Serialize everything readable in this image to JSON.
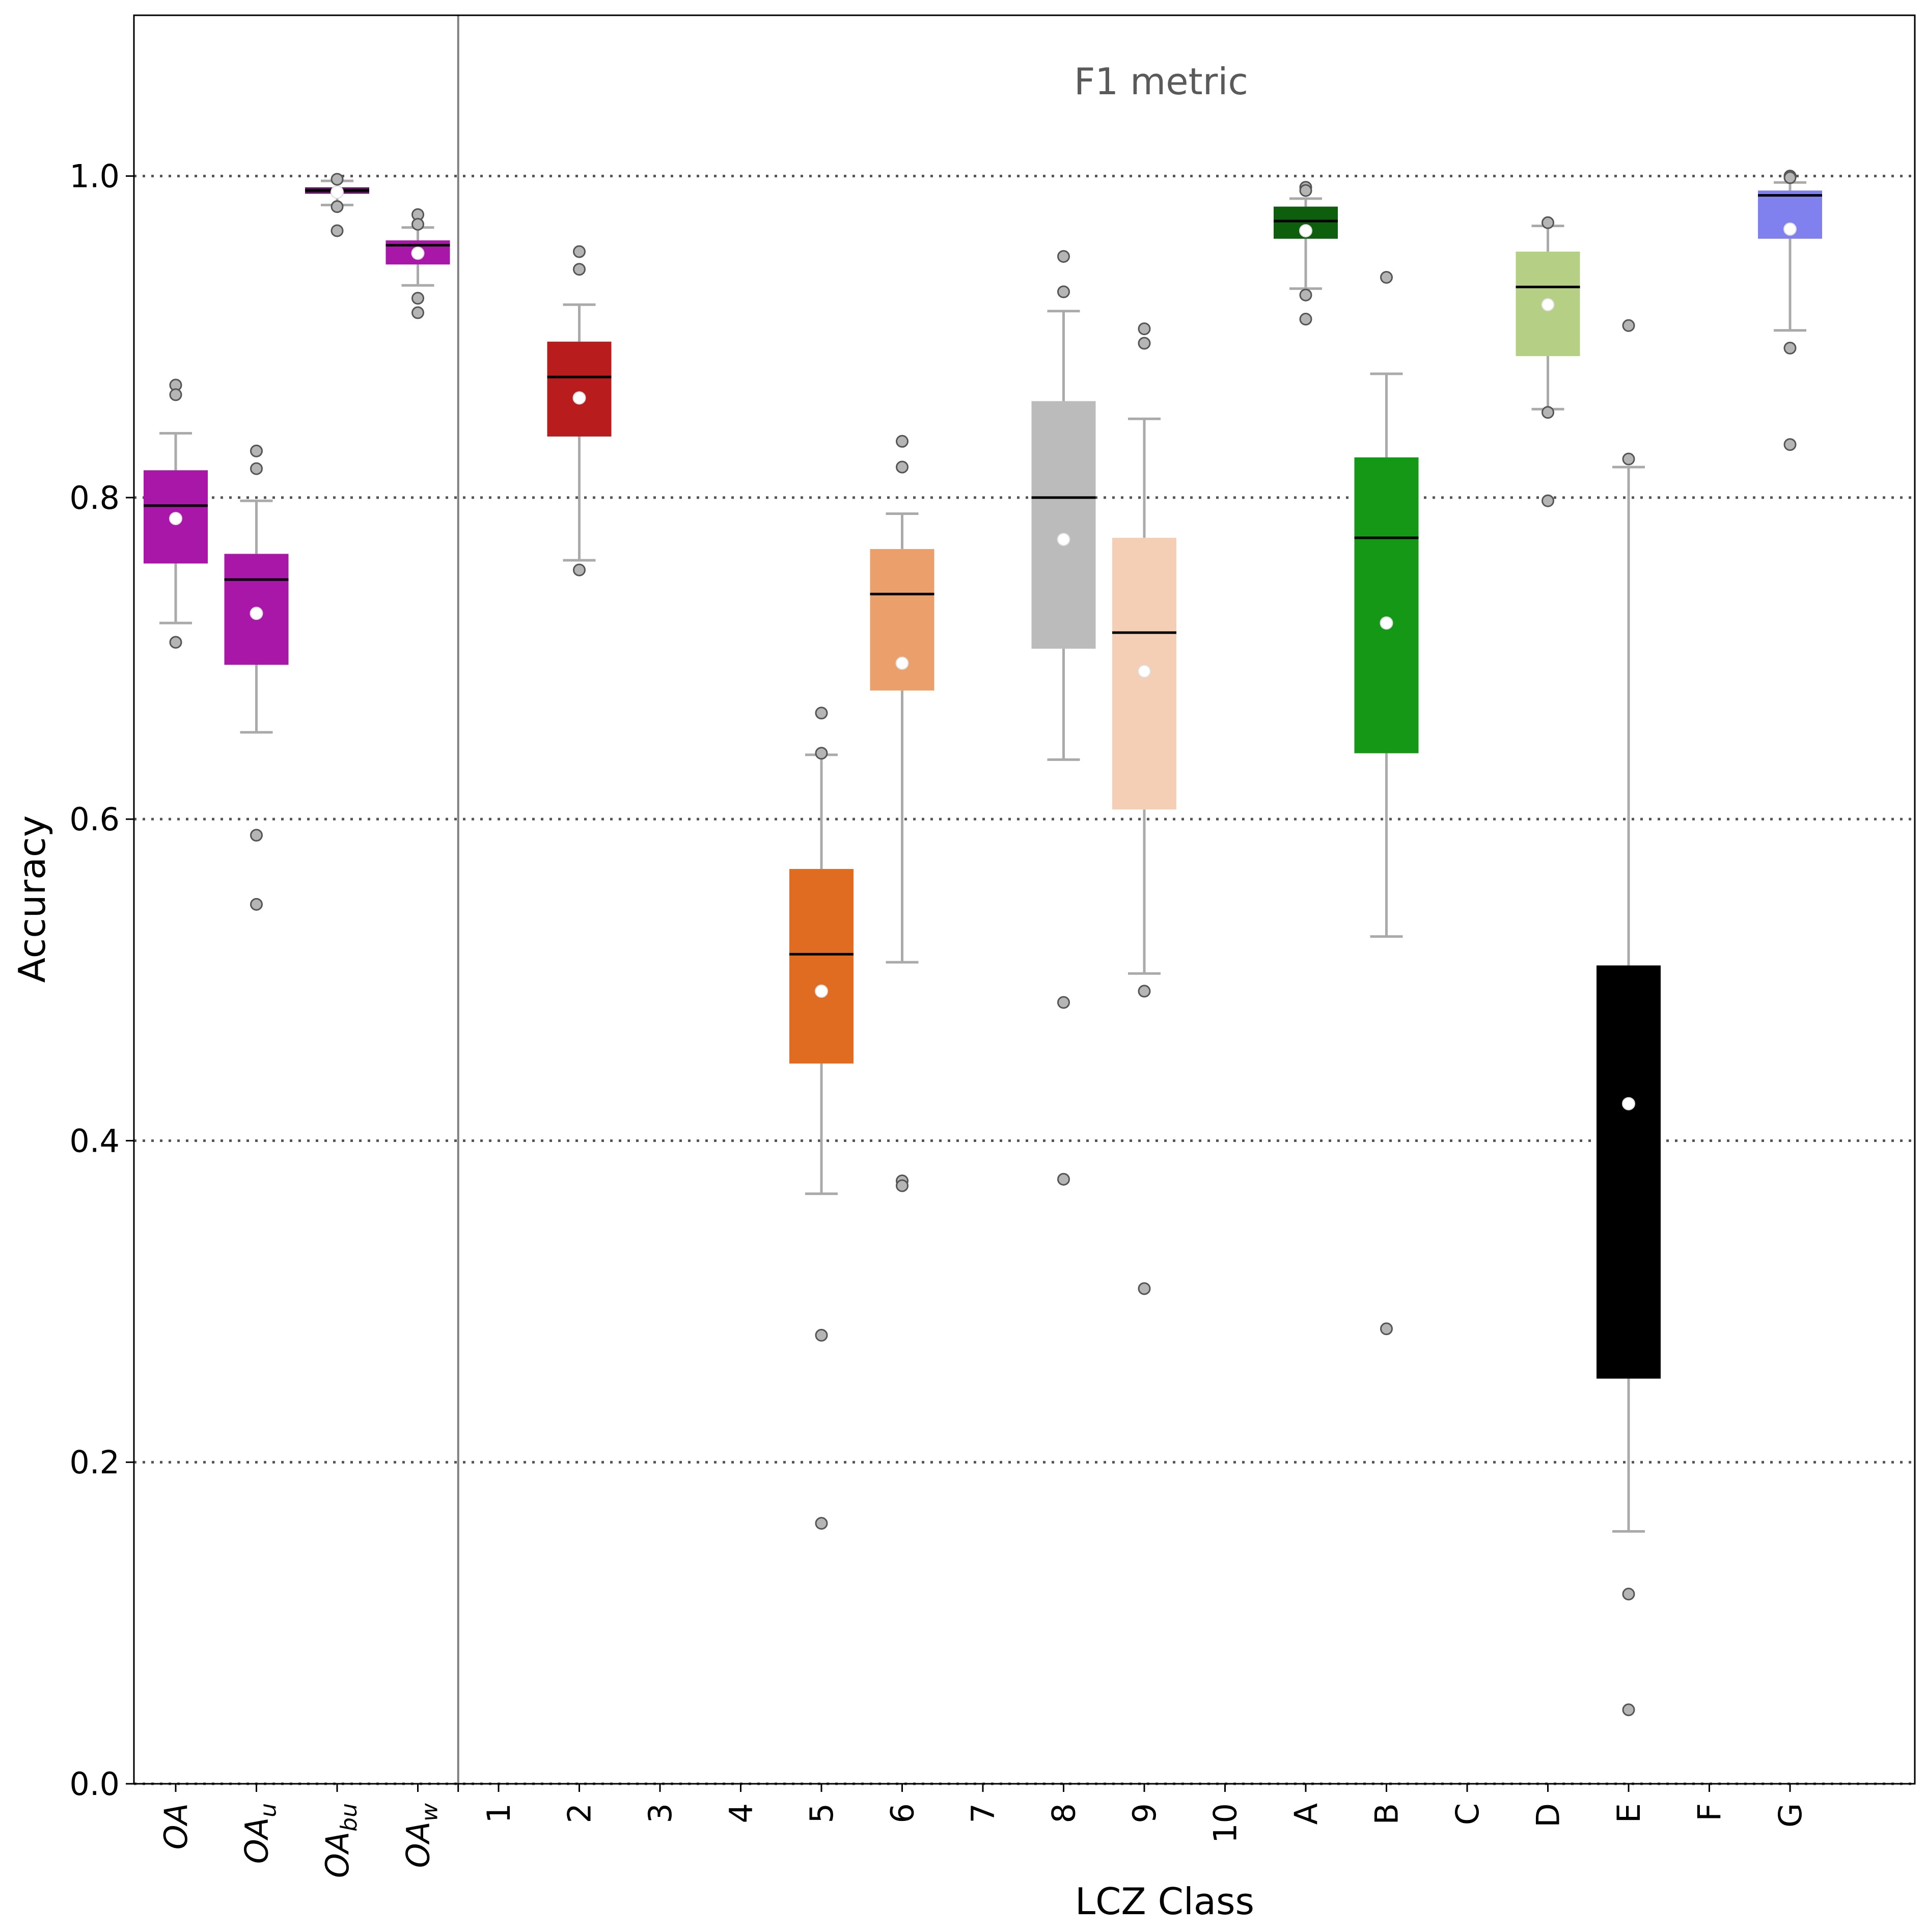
{
  "chart_data": {
    "type": "box",
    "title": "F1 metric",
    "xlabel": "LCZ Class",
    "ylabel": "Accuracy",
    "ylim": [
      0.0,
      1.1
    ],
    "yticks": [
      "0.0",
      "0.2",
      "0.4",
      "0.6",
      "0.8",
      "1.0"
    ],
    "grid": "horizontal dotted at y ticks",
    "categories": [
      {
        "main": "OA",
        "sub": ""
      },
      {
        "main": "OA",
        "sub": "u"
      },
      {
        "main": "OA",
        "sub": "bu"
      },
      {
        "main": "OA",
        "sub": "w"
      },
      {
        "main": "1"
      },
      {
        "main": "2"
      },
      {
        "main": "3"
      },
      {
        "main": "4"
      },
      {
        "main": "5"
      },
      {
        "main": "6"
      },
      {
        "main": "7"
      },
      {
        "main": "8"
      },
      {
        "main": "9"
      },
      {
        "main": "10"
      },
      {
        "main": "A"
      },
      {
        "main": "B"
      },
      {
        "main": "C"
      },
      {
        "main": "D"
      },
      {
        "main": "E"
      },
      {
        "main": "F"
      },
      {
        "main": "G"
      }
    ],
    "boxes": [
      {
        "category": "OA",
        "color": "#a817a8",
        "q1": 0.759,
        "median": 0.795,
        "q3": 0.817,
        "mean": 0.787,
        "whisker_low": 0.722,
        "whisker_high": 0.84,
        "outliers": [
          0.87,
          0.864,
          0.71
        ]
      },
      {
        "category": "OA_u",
        "color": "#a817a8",
        "q1": 0.696,
        "median": 0.749,
        "q3": 0.765,
        "mean": 0.728,
        "whisker_low": 0.654,
        "whisker_high": 0.798,
        "outliers": [
          0.829,
          0.818,
          0.59,
          0.547
        ]
      },
      {
        "category": "OA_bu",
        "color": "#5c1a5c",
        "q1": 0.989,
        "median": 0.991,
        "q3": 0.993,
        "mean": 0.99,
        "whisker_low": 0.982,
        "whisker_high": 0.997,
        "outliers": [
          0.998,
          0.981,
          0.966
        ]
      },
      {
        "category": "OA_w",
        "color": "#a817a8",
        "q1": 0.945,
        "median": 0.957,
        "q3": 0.96,
        "mean": 0.952,
        "whisker_low": 0.932,
        "whisker_high": 0.968,
        "outliers": [
          0.976,
          0.97,
          0.924,
          0.915
        ]
      },
      {
        "category": "2",
        "color": "#b81c1c",
        "q1": 0.838,
        "median": 0.875,
        "q3": 0.897,
        "mean": 0.862,
        "whisker_low": 0.761,
        "whisker_high": 0.92,
        "outliers": [
          0.953,
          0.942,
          0.755
        ]
      },
      {
        "category": "5",
        "color": "#e06c22",
        "q1": 0.448,
        "median": 0.516,
        "q3": 0.569,
        "mean": 0.493,
        "whisker_low": 0.367,
        "whisker_high": 0.64,
        "outliers": [
          0.666,
          0.641,
          0.279,
          0.162
        ]
      },
      {
        "category": "6",
        "color": "#eb9f6a",
        "q1": 0.68,
        "median": 0.74,
        "q3": 0.768,
        "mean": 0.697,
        "whisker_low": 0.511,
        "whisker_high": 0.79,
        "outliers": [
          0.835,
          0.819,
          0.375,
          0.372
        ]
      },
      {
        "category": "8",
        "color": "#bbbbbb",
        "q1": 0.706,
        "median": 0.8,
        "q3": 0.86,
        "mean": 0.774,
        "whisker_low": 0.637,
        "whisker_high": 0.916,
        "outliers": [
          0.95,
          0.928,
          0.486,
          0.376
        ]
      },
      {
        "category": "9",
        "color": "#f5cfb5",
        "q1": 0.606,
        "median": 0.716,
        "q3": 0.775,
        "mean": 0.692,
        "whisker_low": 0.504,
        "whisker_high": 0.849,
        "outliers": [
          0.905,
          0.896,
          0.493,
          0.308
        ]
      },
      {
        "category": "A",
        "color": "#0d5e0d",
        "q1": 0.961,
        "median": 0.972,
        "q3": 0.981,
        "mean": 0.966,
        "whisker_low": 0.93,
        "whisker_high": 0.986,
        "outliers": [
          0.993,
          0.991,
          0.926,
          0.911
        ]
      },
      {
        "category": "B",
        "color": "#159815",
        "q1": 0.641,
        "median": 0.775,
        "q3": 0.825,
        "mean": 0.722,
        "whisker_low": 0.527,
        "whisker_high": 0.877,
        "outliers": [
          0.937,
          0.283
        ]
      },
      {
        "category": "D",
        "color": "#b5d085",
        "q1": 0.888,
        "median": 0.931,
        "q3": 0.953,
        "mean": 0.92,
        "whisker_low": 0.855,
        "whisker_high": 0.969,
        "outliers": [
          0.971,
          0.853,
          0.798
        ]
      },
      {
        "category": "E",
        "color": "#000000",
        "q1": 0.252,
        "median": 0.393,
        "q3": 0.509,
        "mean": 0.423,
        "whisker_low": 0.157,
        "whisker_high": 0.819,
        "outliers": [
          0.907,
          0.824,
          0.118,
          0.046
        ]
      },
      {
        "category": "G",
        "color": "#8080ee",
        "q1": 0.961,
        "median": 0.988,
        "q3": 0.991,
        "mean": 0.967,
        "whisker_low": 0.904,
        "whisker_high": 0.996,
        "outliers": [
          1.0,
          0.999,
          0.893,
          0.833
        ]
      }
    ],
    "colors": {
      "whisker": "#aaaaaa",
      "median": "#000000",
      "mean_marker": "#ffffff",
      "outlier_fill": "#b5b5b5",
      "outlier_edge": "#555555",
      "grid": "#555555",
      "separator": "#808080"
    }
  }
}
